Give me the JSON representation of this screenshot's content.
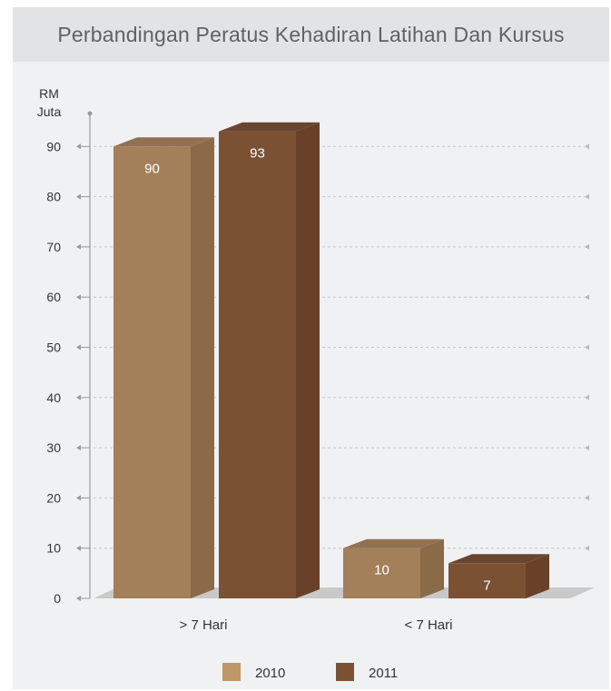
{
  "chart_data": {
    "type": "bar",
    "title": "Perbandingan Peratus Kehadiran Latihan Dan Kursus",
    "ylabel": "RM\nJuta",
    "ylabel_lines": [
      "RM",
      "Juta"
    ],
    "xlabel": "",
    "categories": [
      "> 7 Hari",
      "< 7 Hari"
    ],
    "series": [
      {
        "name": "2010",
        "values": [
          90,
          10
        ]
      },
      {
        "name": "2011",
        "values": [
          93,
          7
        ]
      }
    ],
    "yticks": [
      0,
      10,
      20,
      30,
      40,
      50,
      60,
      70,
      80,
      90
    ],
    "ylim": [
      0,
      100
    ],
    "grid": true,
    "legend_position": "bottom",
    "colors": {
      "2010": {
        "front": "#a3805a",
        "side": "#8a6a47",
        "top": "#917152"
      },
      "2011": {
        "front": "#7b5134",
        "side": "#684128",
        "top": "#6a4630"
      }
    }
  }
}
